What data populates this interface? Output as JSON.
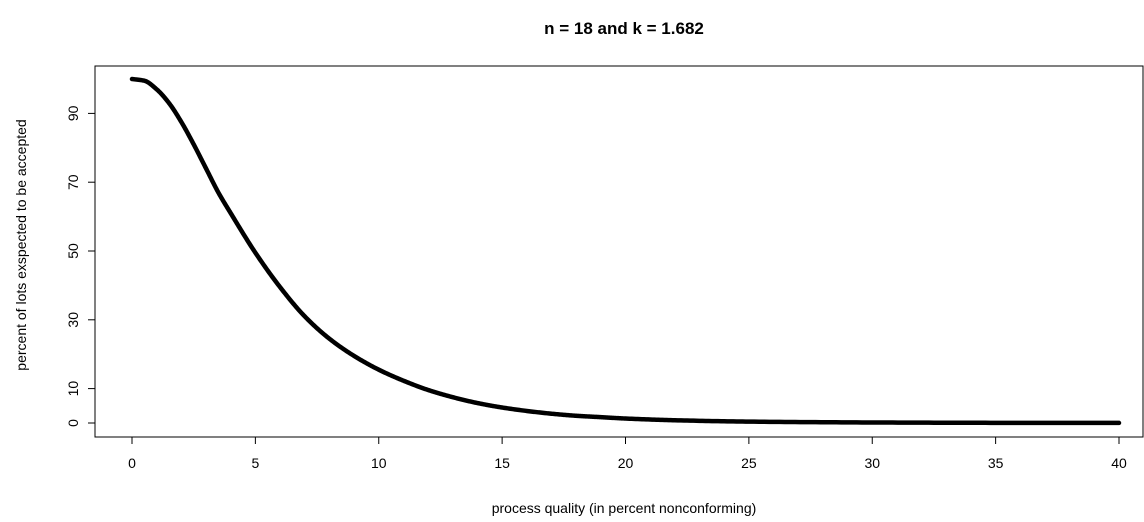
{
  "chart_data": {
    "type": "line",
    "title": "n =  18  and k =  1.682",
    "xlabel": "process quality (in percent nonconforming)",
    "ylabel": "percent of lots exspected to be accepted",
    "xlim": [
      0,
      40
    ],
    "ylim": [
      0,
      100
    ],
    "x_ticks": [
      0,
      5,
      10,
      15,
      20,
      25,
      30,
      35,
      40
    ],
    "y_ticks": [
      0,
      10,
      30,
      50,
      70,
      90
    ],
    "x_tick_labels": [
      "0",
      "5",
      "10",
      "15",
      "20",
      "25",
      "30",
      "35",
      "40"
    ],
    "y_tick_labels": [
      "0",
      "10",
      "30",
      "50",
      "70",
      "90"
    ],
    "grid": false,
    "legend": "none",
    "line_color": "#000000",
    "series": [
      {
        "x": [
          0,
          0.5,
          1,
          1.5,
          2,
          2.5,
          3,
          3.5,
          4,
          5,
          6,
          7,
          8,
          9,
          10,
          11,
          12,
          13,
          14,
          15,
          16,
          17,
          18,
          19,
          20,
          22,
          25,
          30,
          35,
          40
        ],
        "values": [
          100,
          99.5,
          97,
          93,
          87.5,
          81,
          74,
          67,
          61,
          49.5,
          39.5,
          31,
          24.5,
          19.5,
          15.5,
          12.3,
          9.6,
          7.5,
          5.8,
          4.5,
          3.5,
          2.7,
          2.1,
          1.7,
          1.3,
          0.8,
          0.4,
          0.15,
          0.05,
          0.02
        ]
      }
    ]
  }
}
